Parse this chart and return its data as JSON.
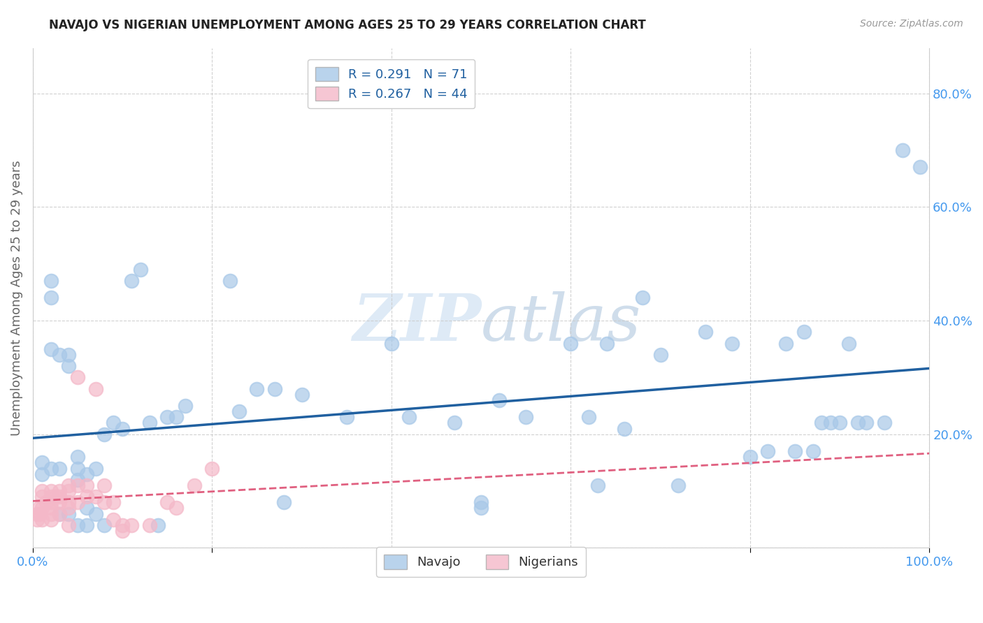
{
  "title": "NAVAJO VS NIGERIAN UNEMPLOYMENT AMONG AGES 25 TO 29 YEARS CORRELATION CHART",
  "source": "Source: ZipAtlas.com",
  "ylabel": "Unemployment Among Ages 25 to 29 years",
  "watermark": "ZIPatlas",
  "navajo_R": 0.291,
  "navajo_N": 71,
  "nigerian_R": 0.267,
  "nigerian_N": 44,
  "navajo_color": "#a8c8e8",
  "nigerian_color": "#f4b8c8",
  "navajo_line_color": "#2060a0",
  "nigerian_line_color": "#e06080",
  "background_color": "#ffffff",
  "grid_color": "#cccccc",
  "tick_color": "#4499ee",
  "xlim": [
    0.0,
    1.0
  ],
  "ylim": [
    0.0,
    0.88
  ],
  "xticks": [
    0.0,
    0.2,
    0.4,
    0.6,
    0.8,
    1.0
  ],
  "xtick_labels": [
    "0.0%",
    "",
    "",
    "",
    "",
    "100.0%"
  ],
  "yticks": [
    0.0,
    0.2,
    0.4,
    0.6,
    0.8
  ],
  "ytick_labels": [
    "",
    "20.0%",
    "40.0%",
    "60.0%",
    "80.0%"
  ],
  "navajo_x": [
    0.01,
    0.01,
    0.02,
    0.02,
    0.02,
    0.02,
    0.03,
    0.03,
    0.03,
    0.04,
    0.04,
    0.04,
    0.05,
    0.05,
    0.05,
    0.05,
    0.06,
    0.06,
    0.06,
    0.07,
    0.07,
    0.08,
    0.08,
    0.09,
    0.1,
    0.11,
    0.12,
    0.13,
    0.14,
    0.15,
    0.16,
    0.17,
    0.22,
    0.23,
    0.25,
    0.27,
    0.28,
    0.3,
    0.35,
    0.4,
    0.42,
    0.47,
    0.5,
    0.5,
    0.52,
    0.55,
    0.6,
    0.62,
    0.63,
    0.64,
    0.66,
    0.68,
    0.7,
    0.72,
    0.75,
    0.78,
    0.8,
    0.82,
    0.84,
    0.85,
    0.86,
    0.87,
    0.88,
    0.89,
    0.9,
    0.91,
    0.92,
    0.93,
    0.95,
    0.97,
    0.99
  ],
  "navajo_y": [
    0.15,
    0.13,
    0.47,
    0.44,
    0.35,
    0.14,
    0.34,
    0.14,
    0.06,
    0.34,
    0.32,
    0.06,
    0.16,
    0.14,
    0.12,
    0.04,
    0.13,
    0.07,
    0.04,
    0.14,
    0.06,
    0.2,
    0.04,
    0.22,
    0.21,
    0.47,
    0.49,
    0.22,
    0.04,
    0.23,
    0.23,
    0.25,
    0.47,
    0.24,
    0.28,
    0.28,
    0.08,
    0.27,
    0.23,
    0.36,
    0.23,
    0.22,
    0.08,
    0.07,
    0.26,
    0.23,
    0.36,
    0.23,
    0.11,
    0.36,
    0.21,
    0.44,
    0.34,
    0.11,
    0.38,
    0.36,
    0.16,
    0.17,
    0.36,
    0.17,
    0.38,
    0.17,
    0.22,
    0.22,
    0.22,
    0.36,
    0.22,
    0.22,
    0.22,
    0.7,
    0.67
  ],
  "nigerian_x": [
    0.005,
    0.005,
    0.007,
    0.008,
    0.01,
    0.01,
    0.01,
    0.01,
    0.015,
    0.02,
    0.02,
    0.02,
    0.02,
    0.02,
    0.02,
    0.025,
    0.03,
    0.03,
    0.03,
    0.03,
    0.04,
    0.04,
    0.04,
    0.04,
    0.04,
    0.05,
    0.05,
    0.05,
    0.06,
    0.06,
    0.07,
    0.07,
    0.08,
    0.08,
    0.09,
    0.09,
    0.1,
    0.1,
    0.11,
    0.13,
    0.15,
    0.16,
    0.18,
    0.2
  ],
  "nigerian_y": [
    0.06,
    0.05,
    0.07,
    0.06,
    0.1,
    0.09,
    0.07,
    0.05,
    0.08,
    0.1,
    0.09,
    0.08,
    0.07,
    0.06,
    0.05,
    0.09,
    0.1,
    0.09,
    0.08,
    0.06,
    0.11,
    0.1,
    0.08,
    0.07,
    0.04,
    0.3,
    0.11,
    0.08,
    0.11,
    0.09,
    0.28,
    0.09,
    0.11,
    0.08,
    0.08,
    0.05,
    0.04,
    0.03,
    0.04,
    0.04,
    0.08,
    0.07,
    0.11,
    0.14
  ]
}
